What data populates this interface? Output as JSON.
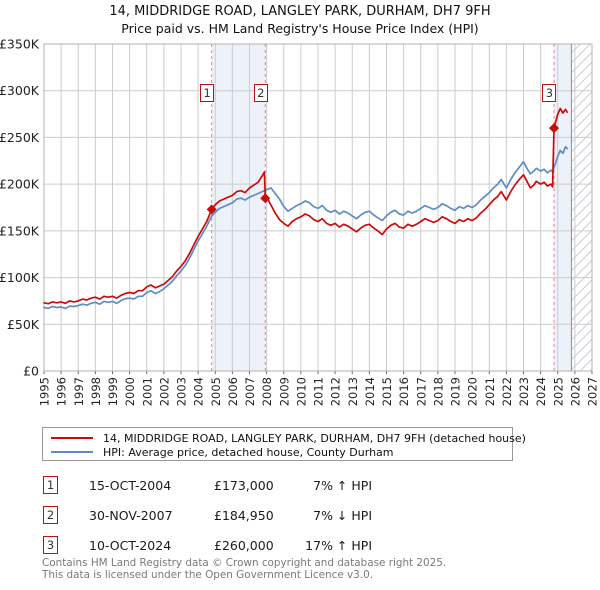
{
  "header": {
    "title": "14, MIDDRIDGE ROAD, LANGLEY PARK, DURHAM, DH7 9FH",
    "subtitle": "Price paid vs. HM Land Registry's House Price Index (HPI)"
  },
  "legend": {
    "items": [
      {
        "label": "14, MIDDRIDGE ROAD, LANGLEY PARK, DURHAM, DH7 9FH (detached house)",
        "color": "#cc0a0a"
      },
      {
        "label": "HPI: Average price, detached house, County Durham",
        "color": "#5c8dc5"
      }
    ]
  },
  "sales": [
    {
      "num": "1",
      "date": "15-OCT-2004",
      "price": "£173,000",
      "pct": "7% ↑ HPI",
      "year": 2004.79,
      "value": 173
    },
    {
      "num": "2",
      "date": "30-NOV-2007",
      "price": "£184,950",
      "pct": "7% ↓ HPI",
      "year": 2007.92,
      "value": 184.95
    },
    {
      "num": "3",
      "date": "10-OCT-2024",
      "price": "£260,000",
      "pct": "17% ↑ HPI",
      "year": 2024.78,
      "value": 260
    }
  ],
  "footer": {
    "line1": "Contains HM Land Registry data © Crown copyright and database right 2025.",
    "line2": "This data is licensed under the Open Government Licence v3.0."
  },
  "chart_data": {
    "type": "line",
    "title": "14, MIDDRIDGE ROAD, LANGLEY PARK, DURHAM, DH7 9FH",
    "subtitle": "Price paid vs. HM Land Registry's House Price Index (HPI)",
    "xlabel": "",
    "ylabel": "",
    "x_range": [
      1995,
      2027
    ],
    "y_range": [
      0,
      350
    ],
    "y_unit": "£K",
    "grid": true,
    "legend_position": "bottom",
    "x_ticks": [
      1995,
      1996,
      1997,
      1998,
      1999,
      2000,
      2001,
      2002,
      2003,
      2004,
      2005,
      2006,
      2007,
      2008,
      2009,
      2010,
      2011,
      2012,
      2013,
      2014,
      2015,
      2016,
      2017,
      2018,
      2019,
      2020,
      2021,
      2022,
      2023,
      2024,
      2025,
      2026,
      2027
    ],
    "y_ticks": [
      {
        "v": 0,
        "label": "£0"
      },
      {
        "v": 50,
        "label": "£50K"
      },
      {
        "v": 100,
        "label": "£100K"
      },
      {
        "v": 150,
        "label": "£150K"
      },
      {
        "v": 200,
        "label": "£200K"
      },
      {
        "v": 250,
        "label": "£250K"
      },
      {
        "v": 300,
        "label": "£300K"
      },
      {
        "v": 350,
        "label": "£350K"
      }
    ],
    "bands": [
      {
        "from": 2004.79,
        "to": 2007.92
      },
      {
        "from": 2024.78,
        "to": 2025.8
      }
    ],
    "future_from": 2025.8,
    "colors": {
      "price_line": "#cc0a0a",
      "hpi_line": "#5c8dc5",
      "band": "#edf1fa",
      "sale_dash": "#f08080",
      "hatch": "#c8ccd4",
      "grid": "#cccccc",
      "frame": "#b3b3b3",
      "end_line": "#999999"
    },
    "series": [
      {
        "id": "hpi-line",
        "name": "HPI: Average price, detached house, County Durham",
        "color": "#5c8dc5",
        "points": [
          [
            1995.0,
            68
          ],
          [
            1995.25,
            67
          ],
          [
            1995.5,
            69
          ],
          [
            1995.75,
            68
          ],
          [
            1996.0,
            68.5
          ],
          [
            1996.25,
            67
          ],
          [
            1996.5,
            69.5
          ],
          [
            1996.75,
            69
          ],
          [
            1997.0,
            70
          ],
          [
            1997.25,
            71.5
          ],
          [
            1997.5,
            70.5
          ],
          [
            1997.75,
            72.5
          ],
          [
            1998.0,
            73.5
          ],
          [
            1998.25,
            71.5
          ],
          [
            1998.5,
            74.5
          ],
          [
            1998.75,
            73.5
          ],
          [
            1999.0,
            74.5
          ],
          [
            1999.25,
            72.5
          ],
          [
            1999.5,
            75.5
          ],
          [
            1999.75,
            77.5
          ],
          [
            2000.0,
            78
          ],
          [
            2000.25,
            77
          ],
          [
            2000.5,
            80
          ],
          [
            2000.75,
            80
          ],
          [
            2001.0,
            84
          ],
          [
            2001.25,
            86
          ],
          [
            2001.5,
            83
          ],
          [
            2001.75,
            85
          ],
          [
            2002.0,
            88
          ],
          [
            2002.25,
            92
          ],
          [
            2002.5,
            96
          ],
          [
            2002.75,
            102
          ],
          [
            2003.0,
            107
          ],
          [
            2003.25,
            113
          ],
          [
            2003.5,
            121
          ],
          [
            2003.75,
            130
          ],
          [
            2004.0,
            139
          ],
          [
            2004.25,
            147
          ],
          [
            2004.5,
            155
          ],
          [
            2004.79,
            166
          ],
          [
            2005.0,
            170
          ],
          [
            2005.25,
            174
          ],
          [
            2005.5,
            176
          ],
          [
            2005.75,
            178
          ],
          [
            2006.0,
            180
          ],
          [
            2006.25,
            184
          ],
          [
            2006.5,
            185
          ],
          [
            2006.75,
            183
          ],
          [
            2007.0,
            186
          ],
          [
            2007.25,
            188
          ],
          [
            2007.5,
            190
          ],
          [
            2007.75,
            192
          ],
          [
            2008.0,
            194
          ],
          [
            2008.25,
            196
          ],
          [
            2008.5,
            190
          ],
          [
            2008.75,
            184
          ],
          [
            2009.0,
            176
          ],
          [
            2009.25,
            171
          ],
          [
            2009.5,
            174
          ],
          [
            2009.75,
            177
          ],
          [
            2010.0,
            179
          ],
          [
            2010.25,
            182
          ],
          [
            2010.5,
            180
          ],
          [
            2010.75,
            176
          ],
          [
            2011.0,
            174
          ],
          [
            2011.25,
            177
          ],
          [
            2011.5,
            172
          ],
          [
            2011.75,
            170
          ],
          [
            2012.0,
            172
          ],
          [
            2012.25,
            168
          ],
          [
            2012.5,
            171
          ],
          [
            2012.75,
            169
          ],
          [
            2013.0,
            166
          ],
          [
            2013.25,
            163
          ],
          [
            2013.5,
            167
          ],
          [
            2013.75,
            170
          ],
          [
            2014.0,
            171
          ],
          [
            2014.25,
            167
          ],
          [
            2014.5,
            164
          ],
          [
            2014.75,
            161
          ],
          [
            2015.0,
            166
          ],
          [
            2015.25,
            170
          ],
          [
            2015.5,
            172
          ],
          [
            2015.75,
            168
          ],
          [
            2016.0,
            167
          ],
          [
            2016.25,
            171
          ],
          [
            2016.5,
            169
          ],
          [
            2016.75,
            171
          ],
          [
            2017.0,
            174
          ],
          [
            2017.25,
            177
          ],
          [
            2017.5,
            175
          ],
          [
            2017.75,
            173
          ],
          [
            2018.0,
            175
          ],
          [
            2018.25,
            179
          ],
          [
            2018.5,
            177
          ],
          [
            2018.75,
            174
          ],
          [
            2019.0,
            172
          ],
          [
            2019.25,
            176
          ],
          [
            2019.5,
            174
          ],
          [
            2019.75,
            177
          ],
          [
            2020.0,
            175
          ],
          [
            2020.25,
            178
          ],
          [
            2020.5,
            183
          ],
          [
            2020.75,
            187
          ],
          [
            2021.0,
            191
          ],
          [
            2021.25,
            196
          ],
          [
            2021.5,
            200
          ],
          [
            2021.7,
            205
          ],
          [
            2022.0,
            196
          ],
          [
            2022.25,
            205
          ],
          [
            2022.5,
            212
          ],
          [
            2022.75,
            218
          ],
          [
            2023.0,
            224
          ],
          [
            2023.2,
            217
          ],
          [
            2023.4,
            211
          ],
          [
            2023.6,
            214
          ],
          [
            2023.75,
            217
          ],
          [
            2024.0,
            214
          ],
          [
            2024.2,
            216
          ],
          [
            2024.4,
            212
          ],
          [
            2024.6,
            215
          ],
          [
            2024.7,
            213
          ],
          [
            2024.78,
            218
          ],
          [
            2024.9,
            224
          ],
          [
            2025.0,
            230
          ],
          [
            2025.15,
            236
          ],
          [
            2025.3,
            233
          ],
          [
            2025.45,
            240
          ],
          [
            2025.55,
            238
          ]
        ]
      },
      {
        "id": "price-line",
        "name": "14, MIDDRIDGE ROAD, LANGLEY PARK, DURHAM, DH7 9FH (detached house)",
        "color": "#cc0a0a",
        "points": [
          [
            1995.0,
            73
          ],
          [
            1995.25,
            72
          ],
          [
            1995.5,
            74
          ],
          [
            1995.75,
            73
          ],
          [
            1996.0,
            74
          ],
          [
            1996.25,
            72.5
          ],
          [
            1996.5,
            75
          ],
          [
            1996.75,
            74
          ],
          [
            1997.0,
            75
          ],
          [
            1997.25,
            77
          ],
          [
            1997.5,
            76
          ],
          [
            1997.75,
            78
          ],
          [
            1998.0,
            79
          ],
          [
            1998.25,
            77
          ],
          [
            1998.5,
            80
          ],
          [
            1998.75,
            79
          ],
          [
            1999.0,
            80
          ],
          [
            1999.25,
            78
          ],
          [
            1999.5,
            81
          ],
          [
            1999.75,
            83
          ],
          [
            2000.0,
            84
          ],
          [
            2000.25,
            83
          ],
          [
            2000.5,
            86
          ],
          [
            2000.75,
            86
          ],
          [
            2001.0,
            90
          ],
          [
            2001.25,
            92
          ],
          [
            2001.5,
            89
          ],
          [
            2001.75,
            91
          ],
          [
            2002.0,
            93
          ],
          [
            2002.25,
            97
          ],
          [
            2002.5,
            101
          ],
          [
            2002.75,
            107
          ],
          [
            2003.0,
            112
          ],
          [
            2003.25,
            118
          ],
          [
            2003.5,
            126
          ],
          [
            2003.75,
            135
          ],
          [
            2004.0,
            144
          ],
          [
            2004.25,
            152
          ],
          [
            2004.5,
            160
          ],
          [
            2004.79,
            173
          ],
          [
            2005.0,
            178
          ],
          [
            2005.25,
            182
          ],
          [
            2005.5,
            184
          ],
          [
            2005.75,
            186
          ],
          [
            2006.0,
            188
          ],
          [
            2006.25,
            192
          ],
          [
            2006.5,
            193
          ],
          [
            2006.75,
            191
          ],
          [
            2007.0,
            196
          ],
          [
            2007.25,
            199
          ],
          [
            2007.5,
            202
          ],
          [
            2007.75,
            209
          ],
          [
            2007.87,
            213
          ],
          [
            2007.92,
            185
          ],
          [
            2008.1,
            183
          ],
          [
            2008.3,
            176
          ],
          [
            2008.5,
            169
          ],
          [
            2008.75,
            162
          ],
          [
            2009.0,
            158
          ],
          [
            2009.25,
            155
          ],
          [
            2009.5,
            160
          ],
          [
            2009.75,
            163
          ],
          [
            2010.0,
            165
          ],
          [
            2010.25,
            168
          ],
          [
            2010.5,
            166
          ],
          [
            2010.75,
            162
          ],
          [
            2011.0,
            160
          ],
          [
            2011.25,
            163
          ],
          [
            2011.5,
            158
          ],
          [
            2011.75,
            156
          ],
          [
            2012.0,
            158
          ],
          [
            2012.25,
            154
          ],
          [
            2012.5,
            157
          ],
          [
            2012.75,
            155
          ],
          [
            2013.0,
            152
          ],
          [
            2013.25,
            149
          ],
          [
            2013.5,
            153
          ],
          [
            2013.75,
            156
          ],
          [
            2014.0,
            157
          ],
          [
            2014.25,
            153
          ],
          [
            2014.5,
            150
          ],
          [
            2014.75,
            146
          ],
          [
            2015.0,
            152
          ],
          [
            2015.25,
            156
          ],
          [
            2015.5,
            158
          ],
          [
            2015.75,
            154
          ],
          [
            2016.0,
            153
          ],
          [
            2016.25,
            157
          ],
          [
            2016.5,
            155
          ],
          [
            2016.75,
            157
          ],
          [
            2017.0,
            160
          ],
          [
            2017.25,
            163
          ],
          [
            2017.5,
            161
          ],
          [
            2017.75,
            159
          ],
          [
            2018.0,
            161
          ],
          [
            2018.25,
            165
          ],
          [
            2018.5,
            163
          ],
          [
            2018.75,
            160
          ],
          [
            2019.0,
            158
          ],
          [
            2019.25,
            162
          ],
          [
            2019.5,
            160
          ],
          [
            2019.75,
            163
          ],
          [
            2020.0,
            161
          ],
          [
            2020.25,
            164
          ],
          [
            2020.5,
            169
          ],
          [
            2020.75,
            173
          ],
          [
            2021.0,
            178
          ],
          [
            2021.25,
            183
          ],
          [
            2021.5,
            187
          ],
          [
            2021.7,
            192
          ],
          [
            2022.0,
            183
          ],
          [
            2022.25,
            192
          ],
          [
            2022.5,
            199
          ],
          [
            2022.75,
            205
          ],
          [
            2023.0,
            210
          ],
          [
            2023.2,
            203
          ],
          [
            2023.4,
            196
          ],
          [
            2023.6,
            199
          ],
          [
            2023.75,
            203
          ],
          [
            2024.0,
            200
          ],
          [
            2024.2,
            202
          ],
          [
            2024.4,
            198
          ],
          [
            2024.6,
            200
          ],
          [
            2024.7,
            197
          ],
          [
            2024.78,
            260
          ],
          [
            2024.9,
            268
          ],
          [
            2025.0,
            275
          ],
          [
            2025.15,
            281
          ],
          [
            2025.3,
            276
          ],
          [
            2025.45,
            280
          ],
          [
            2025.55,
            277
          ]
        ]
      }
    ]
  }
}
